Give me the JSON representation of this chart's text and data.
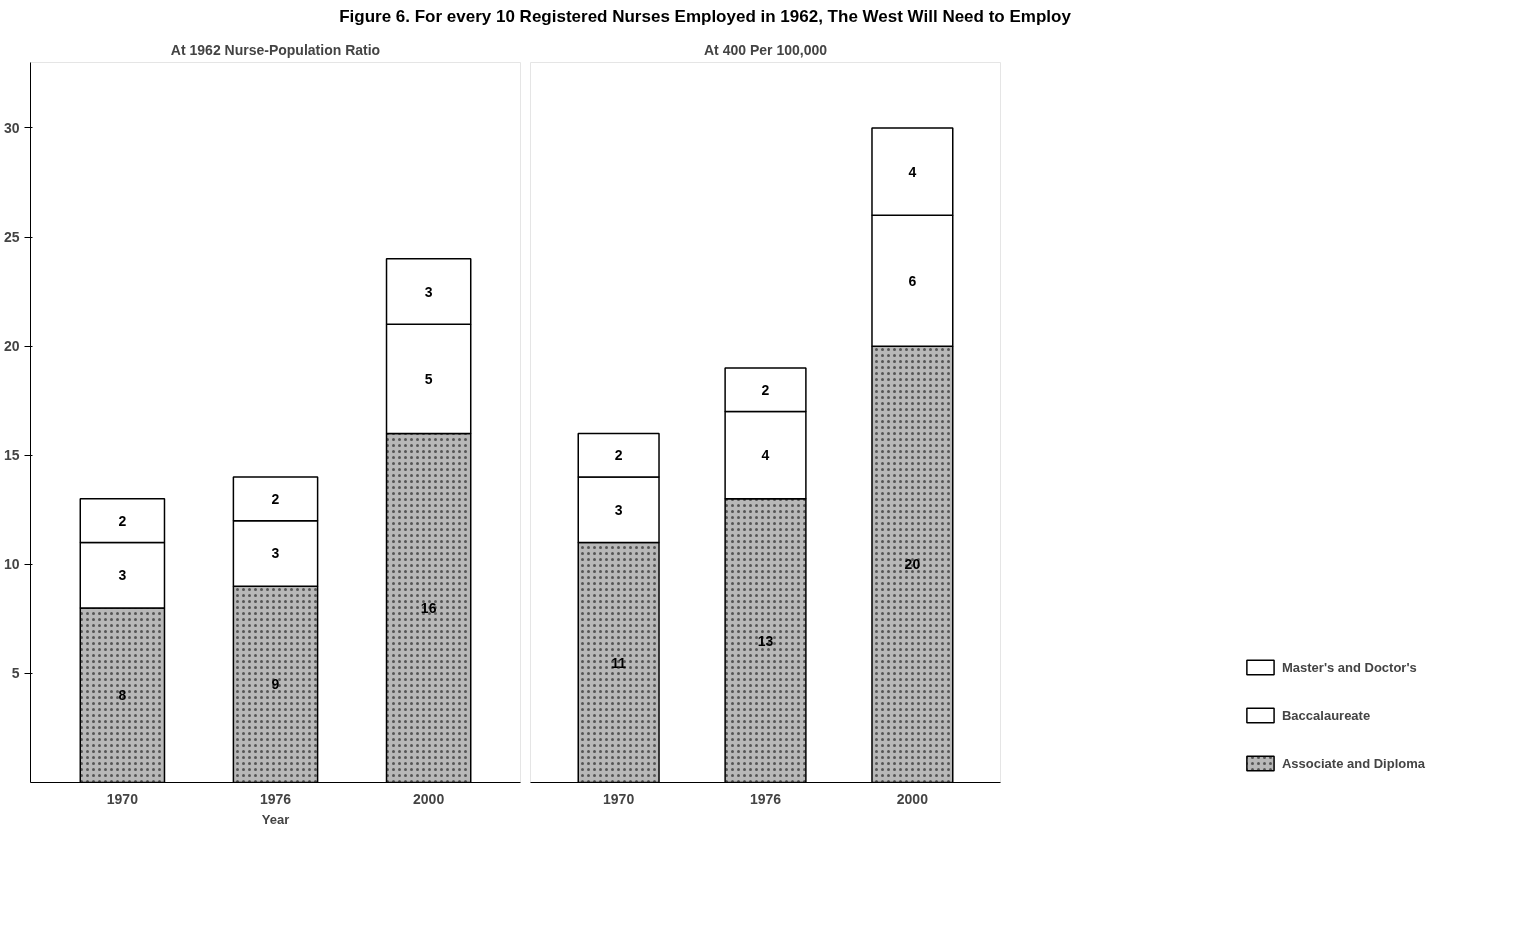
{
  "chart_data": [
    {
      "type": "other",
      "title": "Figure 6. For every 10 Registered Nurses Employed in 1962, The West Will Need to Employ"
    },
    {
      "type": "bar",
      "title": "At 1962 Nurse-Population Ratio",
      "xlabel": "Year",
      "categories": [
        "1970",
        "1976",
        "2000"
      ],
      "stacked": true,
      "data_labels": true,
      "ylim": [
        0,
        33
      ],
      "yticks": [
        5,
        10,
        15,
        20,
        25,
        30
      ],
      "grid": false,
      "legend": "bottom right",
      "series": [
        {
          "name": "Associate and Diploma",
          "color": "#b8b8b8",
          "values": [
            8,
            9,
            16
          ]
        },
        {
          "name": "Baccalaureate",
          "color": "#ffffff",
          "values": [
            3,
            3,
            5
          ]
        },
        {
          "name": "Master's and Doctor's",
          "color": "#ffffff",
          "values": [
            2,
            2,
            3
          ]
        }
      ]
    },
    {
      "type": "bar",
      "title": "At 400 Per 100,000",
      "categories": [
        "1970",
        "1976",
        "2000"
      ],
      "stacked": true,
      "data_labels": true,
      "ylim": [
        0,
        33
      ],
      "yticks": [
        5,
        10,
        15,
        20,
        25,
        30
      ],
      "grid": false,
      "tick_labels": "x",
      "series": [
        {
          "color": "#b8b8b8",
          "values": [
            11,
            13,
            20
          ]
        },
        {
          "color": "#ffffff",
          "values": [
            3,
            4,
            6
          ]
        },
        {
          "color": "#ffffff",
          "values": [
            2,
            2,
            4
          ]
        }
      ]
    }
  ]
}
